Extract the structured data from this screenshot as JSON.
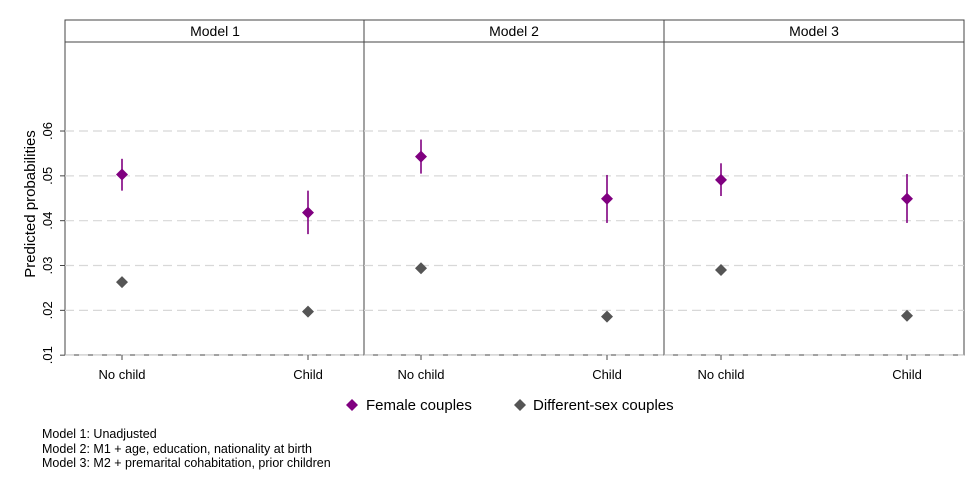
{
  "chart_data": {
    "type": "scatter",
    "subtype": "point-estimates-with-confidence-intervals",
    "ylabel": "Predicted probabilities",
    "ylim": [
      0.0,
      0.07
    ],
    "yticks": [
      {
        "value": 0.01,
        "label": ".01"
      },
      {
        "value": 0.02,
        "label": ".02"
      },
      {
        "value": 0.03,
        "label": ".03"
      },
      {
        "value": 0.04,
        "label": ".04"
      },
      {
        "value": 0.05,
        "label": ".05"
      },
      {
        "value": 0.06,
        "label": ".06"
      }
    ],
    "grid": true,
    "categories": [
      "No child",
      "Child"
    ],
    "legend_position": "bottom",
    "series_styles": [
      {
        "name": "Female couples",
        "color": "#800080",
        "marker": "diamond"
      },
      {
        "name": "Different-sex couples",
        "color": "#555555",
        "marker": "diamond"
      }
    ],
    "panels": [
      {
        "title": "Model 1",
        "series": [
          {
            "name": "Female couples",
            "values": [
              0.0503,
              0.0418
            ],
            "ci_low": [
              0.0467,
              0.037
            ],
            "ci_high": [
              0.0538,
              0.0467
            ]
          },
          {
            "name": "Different-sex couples",
            "values": [
              0.0263,
              0.0197
            ]
          }
        ]
      },
      {
        "title": "Model 2",
        "series": [
          {
            "name": "Female couples",
            "values": [
              0.0543,
              0.0449
            ],
            "ci_low": [
              0.0505,
              0.0395
            ],
            "ci_high": [
              0.0581,
              0.0502
            ]
          },
          {
            "name": "Different-sex couples",
            "values": [
              0.0294,
              0.0186
            ]
          }
        ]
      },
      {
        "title": "Model 3",
        "series": [
          {
            "name": "Female couples",
            "values": [
              0.0491,
              0.0449
            ],
            "ci_low": [
              0.0455,
              0.0395
            ],
            "ci_high": [
              0.0528,
              0.0504
            ]
          },
          {
            "name": "Different-sex couples",
            "values": [
              0.029,
              0.0188
            ]
          }
        ]
      }
    ]
  },
  "notes": [
    "Model 1: Unadjusted",
    "Model 2: M1 + age, education, nationality at birth",
    "Model 3: M2 + premarital cohabitation, prior children"
  ]
}
